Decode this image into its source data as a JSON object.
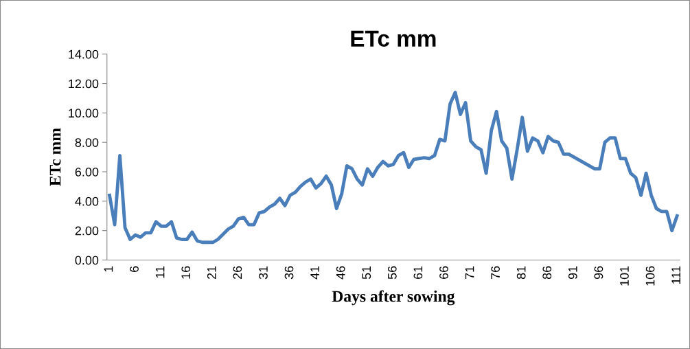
{
  "chart_data": {
    "type": "line",
    "title": "ETc mm",
    "xlabel": "Days after sowing",
    "ylabel": "ETc mm",
    "categories": [
      "1",
      null,
      null,
      null,
      null,
      "6",
      null,
      null,
      null,
      null,
      "11",
      null,
      null,
      null,
      null,
      "16",
      null,
      null,
      null,
      null,
      "21",
      null,
      null,
      null,
      null,
      "26",
      null,
      null,
      null,
      null,
      "31",
      null,
      null,
      null,
      null,
      "36",
      null,
      null,
      null,
      null,
      "41",
      null,
      null,
      null,
      null,
      "46",
      null,
      null,
      null,
      null,
      "51",
      null,
      null,
      null,
      null,
      "56",
      null,
      null,
      null,
      null,
      "61",
      null,
      null,
      null,
      null,
      "66",
      null,
      null,
      null,
      null,
      "71",
      null,
      null,
      null,
      null,
      "76",
      null,
      null,
      null,
      null,
      "81",
      null,
      null,
      null,
      null,
      "86",
      null,
      null,
      null,
      null,
      "91",
      null,
      null,
      null,
      null,
      "96",
      null,
      null,
      null,
      null,
      "101",
      null,
      null,
      null,
      null,
      "106",
      null,
      null,
      null,
      null,
      "111"
    ],
    "series": [
      {
        "color": "#4a7ebb",
        "values": [
          4.4,
          2.4,
          7.1,
          2.2,
          1.4,
          1.7,
          1.55,
          1.85,
          1.85,
          2.6,
          2.3,
          2.3,
          2.6,
          1.5,
          1.4,
          1.4,
          1.9,
          1.3,
          1.2,
          1.2,
          1.2,
          1.4,
          1.75,
          2.1,
          2.3,
          2.8,
          2.9,
          2.4,
          2.4,
          3.2,
          3.3,
          3.6,
          3.8,
          4.2,
          3.7,
          4.4,
          4.6,
          5.0,
          5.3,
          5.5,
          4.9,
          5.2,
          5.7,
          5.1,
          3.5,
          4.5,
          6.4,
          6.2,
          5.5,
          5.1,
          6.2,
          5.7,
          6.3,
          6.7,
          6.4,
          6.5,
          7.1,
          7.3,
          6.3,
          6.85,
          6.9,
          6.95,
          6.9,
          7.1,
          8.2,
          8.1,
          10.6,
          11.4,
          9.9,
          10.7,
          8.1,
          7.7,
          7.5,
          5.9,
          8.8,
          10.1,
          8.1,
          7.6,
          5.5,
          7.5,
          9.7,
          7.4,
          8.3,
          8.1,
          7.3,
          8.4,
          8.1,
          8.0,
          7.2,
          7.2,
          7.0,
          6.8,
          6.6,
          6.4,
          6.2,
          6.2,
          8.0,
          8.3,
          8.3,
          6.9,
          6.9,
          5.9,
          5.6,
          4.4,
          5.9,
          4.4,
          3.5,
          3.3,
          3.3,
          2.0,
          3.0
        ]
      }
    ],
    "ylim": [
      0,
      14
    ],
    "yticks": [
      {
        "value": 0,
        "label": "0.00"
      },
      {
        "value": 2,
        "label": "2.00"
      },
      {
        "value": 4,
        "label": "4.00"
      },
      {
        "value": 6,
        "label": "6.00"
      },
      {
        "value": 8,
        "label": "8.00"
      },
      {
        "value": 10,
        "label": "10.00"
      },
      {
        "value": 12,
        "label": "12.00"
      },
      {
        "value": 14,
        "label": "14.00"
      }
    ],
    "grid": false,
    "legend": false,
    "marker": "none",
    "line_style": "solid"
  }
}
